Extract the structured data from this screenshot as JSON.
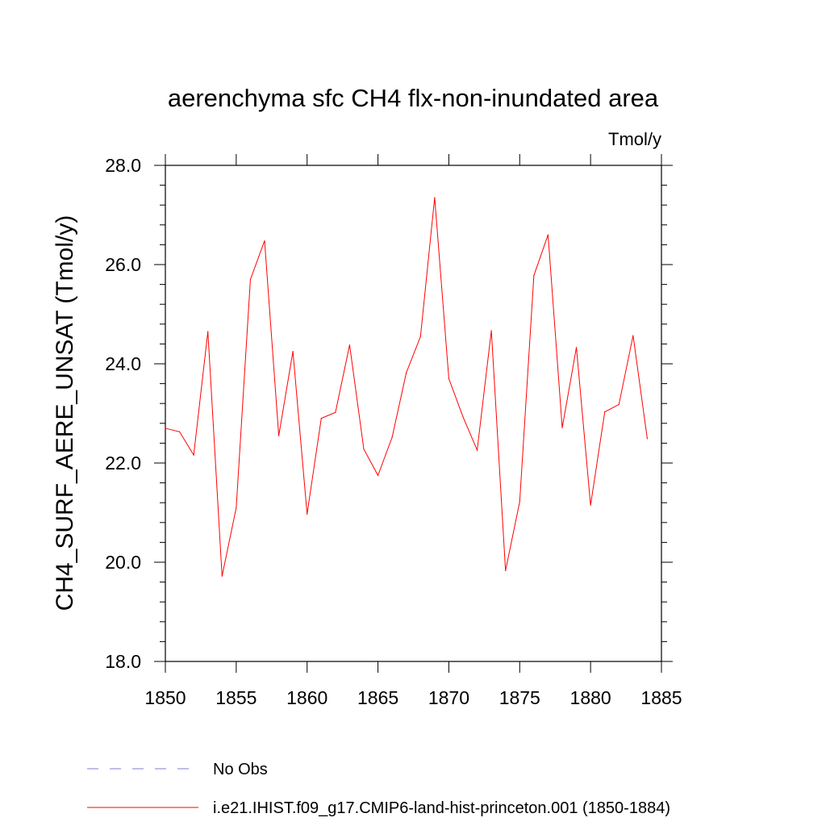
{
  "chart_data": {
    "type": "line",
    "title": "aerenchyma sfc CH4 flx-non-inundated area",
    "units_label": "Tmol/y",
    "xlabel": "",
    "ylabel": "CH4_SURF_AERE_UNSAT  (Tmol/y)",
    "xlim": [
      1850,
      1885
    ],
    "ylim": [
      18.0,
      28.0
    ],
    "x_ticks": [
      1850,
      1855,
      1860,
      1865,
      1870,
      1875,
      1880,
      1885
    ],
    "x_tick_labels": [
      "1850",
      "1855",
      "1860",
      "1865",
      "1870",
      "1875",
      "1880",
      "1885"
    ],
    "y_ticks": [
      18.0,
      20.0,
      22.0,
      24.0,
      26.0,
      28.0
    ],
    "y_tick_labels": [
      "18.0",
      "20.0",
      "22.0",
      "24.0",
      "26.0",
      "28.0"
    ],
    "grid": false,
    "legend_position": "bottom",
    "colors": {
      "model": "#ff0000",
      "obs": "#7b7bd4",
      "axis": "#000000"
    },
    "series": [
      {
        "name": "i.e21.IHIST.f09_g17.CMIP6-land-hist-princeton.001 (1850-1884)",
        "color": "#ff0000",
        "style": "solid",
        "x": [
          1850,
          1851,
          1852,
          1853,
          1854,
          1855,
          1856,
          1857,
          1858,
          1859,
          1860,
          1861,
          1862,
          1863,
          1864,
          1865,
          1866,
          1867,
          1868,
          1869,
          1870,
          1871,
          1872,
          1873,
          1874,
          1875,
          1876,
          1877,
          1878,
          1879,
          1880,
          1881,
          1882,
          1883,
          1884
        ],
        "y": [
          22.7,
          22.63,
          22.16,
          24.65,
          19.72,
          21.1,
          25.7,
          26.48,
          22.55,
          24.25,
          20.97,
          22.9,
          23.02,
          24.38,
          22.28,
          21.75,
          22.52,
          23.82,
          24.55,
          27.35,
          23.7,
          22.93,
          22.26,
          24.67,
          19.83,
          21.22,
          25.78,
          26.6,
          22.71,
          24.33,
          21.15,
          23.03,
          23.18,
          24.57,
          22.49
        ]
      }
    ],
    "legend": [
      {
        "label": "No Obs",
        "color": "#7b7bd4",
        "style": "dashed"
      },
      {
        "label": "i.e21.IHIST.f09_g17.CMIP6-land-hist-princeton.001 (1850-1884)",
        "color": "#ff0000",
        "style": "solid"
      }
    ]
  }
}
